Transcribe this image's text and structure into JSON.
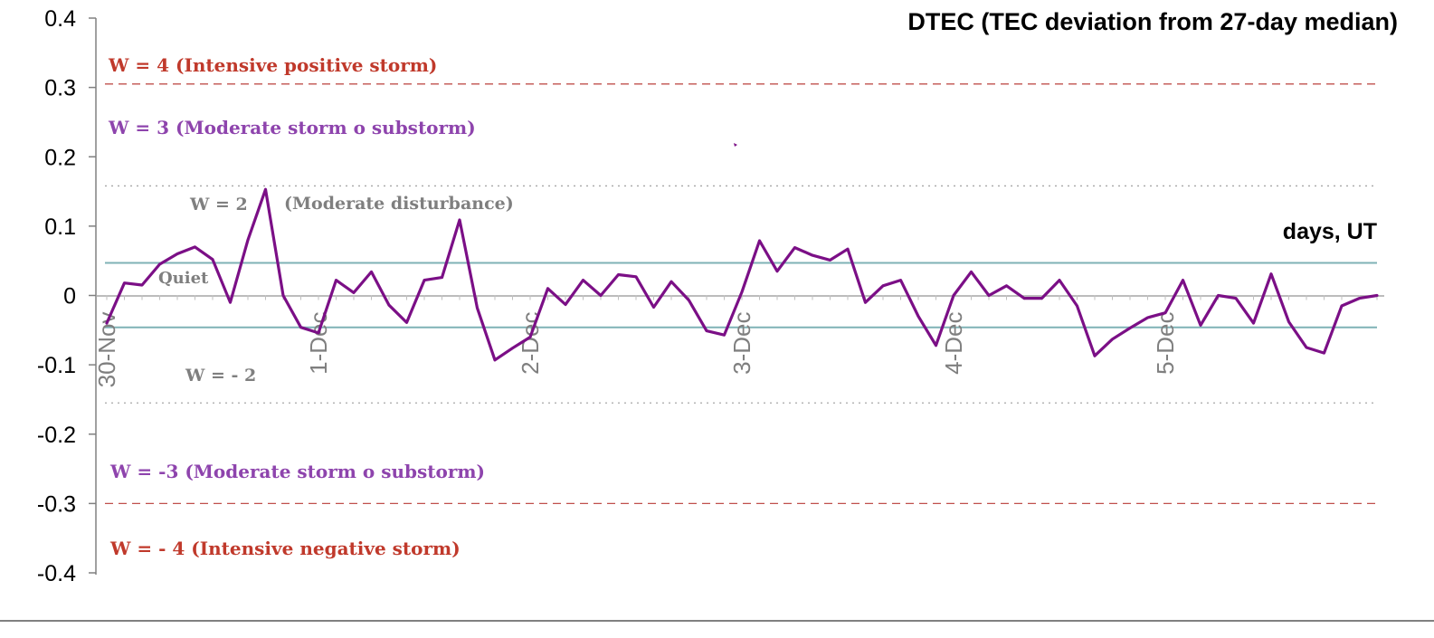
{
  "chart_data": {
    "type": "line",
    "title": "DTEC (TEC deviation from 27-day median)",
    "xlabel": "days, UT",
    "ylabel": "",
    "ylim": [
      -0.4,
      0.4
    ],
    "yticks": [
      "0.4",
      "0.3",
      "0.2",
      "0.1",
      "0",
      "-0.1",
      "-0.2",
      "-0.3",
      "-0.4"
    ],
    "xlim": [
      0,
      72
    ],
    "x_tick_labels": [
      {
        "label": "30-Nov",
        "x": 0
      },
      {
        "label": "1-Dec",
        "x": 12
      },
      {
        "label": "2-Dec",
        "x": 24
      },
      {
        "label": "3-Dec",
        "x": 36
      },
      {
        "label": "4-Dec",
        "x": 48
      },
      {
        "label": "5-Dec",
        "x": 60
      }
    ],
    "grid": false,
    "reference_lines": [
      {
        "name": "W4 positive",
        "y": 0.305,
        "style": "dashed",
        "color": "#c0504d"
      },
      {
        "name": "W3 positive",
        "y": 0.158,
        "style": "dotted",
        "color": "#a6a6a6"
      },
      {
        "name": "quiet upper",
        "y": 0.047,
        "style": "solid",
        "color": "#7fb2b6"
      },
      {
        "name": "quiet lower",
        "y": -0.046,
        "style": "solid",
        "color": "#7fb2b6"
      },
      {
        "name": "W3 negative",
        "y": -0.155,
        "style": "dotted",
        "color": "#a6a6a6"
      },
      {
        "name": "W4 negative",
        "y": -0.3,
        "style": "dashed",
        "color": "#c0504d"
      }
    ],
    "annotations": [
      {
        "text": "W = 4 (Intensive positive storm)",
        "color": "#c0392b"
      },
      {
        "text": "W = 3 (Moderate storm o substorm)",
        "color": "#8e44ad"
      },
      {
        "text": "W = 2",
        "color": "#7f7f7f"
      },
      {
        "text": "(Moderate disturbance)",
        "color": "#7f7f7f"
      },
      {
        "text": "Quiet",
        "color": "#7f7f7f"
      },
      {
        "text": "W = - 2",
        "color": "#7f7f7f"
      },
      {
        "text": "W = -3 (Moderate storm o substorm)",
        "color": "#8e44ad"
      },
      {
        "text": "W = - 4 (Intensive negative storm)",
        "color": "#c0392b"
      }
    ],
    "series": [
      {
        "color": "#7b0f86",
        "x": [
          0,
          1,
          2,
          3,
          4,
          5,
          6,
          7,
          8,
          9,
          10,
          11,
          12,
          13,
          14,
          15,
          16,
          17,
          18,
          19,
          20,
          21,
          22,
          23,
          24,
          25,
          26,
          27,
          28,
          29,
          30,
          31,
          32,
          33,
          34,
          35,
          36,
          37,
          38,
          39,
          40,
          41,
          42,
          43,
          44,
          45,
          46,
          47,
          48,
          49,
          50,
          51,
          52,
          53,
          54,
          55,
          56,
          57,
          58,
          59,
          60,
          61,
          62,
          63,
          64,
          65,
          66,
          67,
          68,
          69,
          70,
          71,
          72
        ],
        "values": [
          -0.04,
          0.018,
          0.015,
          0.045,
          0.06,
          0.07,
          0.052,
          -0.01,
          0.08,
          0.153,
          0.0,
          -0.046,
          -0.054,
          0.022,
          0.004,
          0.034,
          -0.014,
          -0.039,
          0.022,
          0.026,
          0.109,
          -0.018,
          -0.093,
          -0.076,
          -0.06,
          0.01,
          -0.013,
          0.022,
          0.0,
          0.03,
          0.027,
          -0.017,
          0.02,
          -0.007,
          -0.051,
          -0.057,
          0.005,
          0.079,
          0.035,
          0.069,
          0.058,
          0.051,
          0.067,
          -0.01,
          0.014,
          0.022,
          -0.03,
          -0.072,
          0.0,
          0.034,
          0.0,
          0.014,
          -0.004,
          -0.004,
          0.022,
          -0.015,
          -0.087,
          -0.063,
          -0.047,
          -0.032,
          -0.025,
          0.022,
          -0.043,
          0.0,
          -0.004,
          -0.04,
          0.031,
          -0.038,
          -0.075,
          -0.083,
          -0.015,
          -0.004,
          0.0
        ]
      }
    ]
  }
}
